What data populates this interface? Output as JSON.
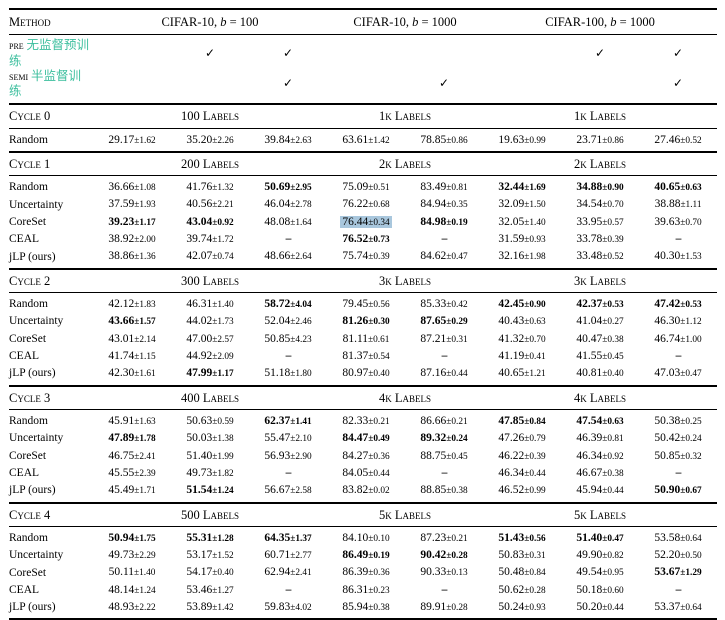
{
  "header": {
    "method_label": "Method",
    "groups": [
      "CIFAR-10, b = 100",
      "CIFAR-10, b = 1000",
      "CIFAR-100, b = 1000"
    ],
    "group_spans": [
      3,
      2,
      3
    ]
  },
  "pretrain": {
    "pre_label": "pre",
    "pre_text": "无监督预训练",
    "semi_label": "semi",
    "semi_text": "半监督训练",
    "check_glyph": "✓",
    "pre_checks": [
      0,
      1,
      1,
      0,
      0,
      0,
      1,
      1
    ],
    "semi_checks": [
      0,
      0,
      1,
      0,
      1,
      0,
      0,
      1
    ]
  },
  "colors": {
    "accent_teal": "#3dbf9e",
    "highlight_blue": "#a9c7dd"
  },
  "cycles": [
    {
      "name": "Cycle 0",
      "labels": [
        "100 Labels",
        "1k Labels",
        "1k Labels"
      ],
      "rows": [
        {
          "method": "Random",
          "values": [
            "29.17±1.62",
            "35.20±2.26",
            "39.84±2.63",
            "63.61±1.42",
            "78.85±0.86",
            "19.63±0.99",
            "23.71±0.86",
            "27.46±0.52"
          ],
          "bold": [],
          "highlight": []
        }
      ]
    },
    {
      "name": "Cycle 1",
      "labels": [
        "200 Labels",
        "2k Labels",
        "2k Labels"
      ],
      "rows": [
        {
          "method": "Random",
          "values": [
            "36.66±1.08",
            "41.76±1.32",
            "50.69±2.95",
            "75.09±0.51",
            "83.49±0.81",
            "32.44±1.69",
            "34.88±0.90",
            "40.65±0.63"
          ],
          "bold": [
            2,
            5,
            6,
            7
          ],
          "highlight": []
        },
        {
          "method": "Uncertainty",
          "values": [
            "37.59±1.93",
            "40.56±2.21",
            "46.04±2.78",
            "76.22±0.68",
            "84.94±0.35",
            "32.09±1.50",
            "34.54±0.70",
            "38.88±1.11"
          ],
          "bold": [],
          "highlight": []
        },
        {
          "method": "CoreSet",
          "values": [
            "39.23±1.17",
            "43.04±0.92",
            "48.08±1.64",
            "76.44±0.34",
            "84.98±0.19",
            "32.05±1.40",
            "33.95±0.57",
            "39.63±0.70"
          ],
          "bold": [
            0,
            1,
            4
          ],
          "highlight": [
            3
          ]
        },
        {
          "method": "CEAL",
          "values": [
            "38.92±2.00",
            "39.74±1.72",
            "–",
            "76.52±0.73",
            "–",
            "31.59±0.93",
            "33.78±0.39",
            "–"
          ],
          "bold": [
            3
          ],
          "highlight": []
        },
        {
          "method": "jLP (ours)",
          "values": [
            "38.86±1.36",
            "42.07±0.74",
            "48.66±2.64",
            "75.74±0.39",
            "84.62±0.47",
            "32.16±1.98",
            "33.48±0.52",
            "40.30±1.53"
          ],
          "bold": [],
          "highlight": []
        }
      ]
    },
    {
      "name": "Cycle 2",
      "labels": [
        "300 Labels",
        "3k Labels",
        "3k Labels"
      ],
      "rows": [
        {
          "method": "Random",
          "values": [
            "42.12±1.83",
            "46.31±1.40",
            "58.72±4.04",
            "79.45±0.56",
            "85.33±0.42",
            "42.45±0.90",
            "42.37±0.53",
            "47.42±0.53"
          ],
          "bold": [
            2,
            5,
            6,
            7
          ],
          "highlight": []
        },
        {
          "method": "Uncertainty",
          "values": [
            "43.66±1.57",
            "44.02±1.73",
            "52.04±2.46",
            "81.26±0.30",
            "87.65±0.29",
            "40.43±0.63",
            "41.04±0.27",
            "46.30±1.12"
          ],
          "bold": [
            0,
            3,
            4
          ],
          "highlight": []
        },
        {
          "method": "CoreSet",
          "values": [
            "43.01±2.14",
            "47.00±2.57",
            "50.85±4.23",
            "81.11±0.61",
            "87.21±0.31",
            "41.32±0.70",
            "40.47±0.38",
            "46.74±1.00"
          ],
          "bold": [],
          "highlight": []
        },
        {
          "method": "CEAL",
          "values": [
            "41.74±1.15",
            "44.92±2.09",
            "–",
            "81.37±0.54",
            "–",
            "41.19±0.41",
            "41.55±0.45",
            "–"
          ],
          "bold": [],
          "highlight": []
        },
        {
          "method": "jLP (ours)",
          "values": [
            "42.30±1.61",
            "47.99±1.17",
            "51.18±1.80",
            "80.97±0.40",
            "87.16±0.44",
            "40.65±1.21",
            "40.81±0.40",
            "47.03±0.47"
          ],
          "bold": [
            1
          ],
          "highlight": []
        }
      ]
    },
    {
      "name": "Cycle 3",
      "labels": [
        "400 Labels",
        "4k Labels",
        "4k Labels"
      ],
      "rows": [
        {
          "method": "Random",
          "values": [
            "45.91±1.63",
            "50.63±0.59",
            "62.37±1.41",
            "82.33±0.21",
            "86.66±0.21",
            "47.85±0.84",
            "47.54±0.63",
            "50.38±0.25"
          ],
          "bold": [
            2,
            5,
            6
          ],
          "highlight": []
        },
        {
          "method": "Uncertainty",
          "values": [
            "47.89±1.78",
            "50.03±1.38",
            "55.47±2.10",
            "84.47±0.49",
            "89.32±0.24",
            "47.26±0.79",
            "46.39±0.81",
            "50.42±0.24"
          ],
          "bold": [
            0,
            3,
            4
          ],
          "highlight": []
        },
        {
          "method": "CoreSet",
          "values": [
            "46.75±2.41",
            "51.40±1.99",
            "56.93±2.90",
            "84.27±0.36",
            "88.75±0.45",
            "46.22±0.39",
            "46.34±0.92",
            "50.85±0.32"
          ],
          "bold": [],
          "highlight": []
        },
        {
          "method": "CEAL",
          "values": [
            "45.55±2.39",
            "49.73±1.82",
            "–",
            "84.05±0.44",
            "–",
            "46.34±0.44",
            "46.67±0.38",
            "–"
          ],
          "bold": [],
          "highlight": []
        },
        {
          "method": "jLP (ours)",
          "values": [
            "45.49±1.71",
            "51.54±1.24",
            "56.67±2.58",
            "83.82±0.02",
            "88.85±0.38",
            "46.52±0.99",
            "45.94±0.44",
            "50.90±0.67"
          ],
          "bold": [
            1,
            7
          ],
          "highlight": []
        }
      ]
    },
    {
      "name": "Cycle 4",
      "labels": [
        "500 Labels",
        "5k Labels",
        "5k Labels"
      ],
      "rows": [
        {
          "method": "Random",
          "values": [
            "50.94±1.75",
            "55.31±1.28",
            "64.35±1.37",
            "84.10±0.10",
            "87.23±0.21",
            "51.43±0.56",
            "51.40±0.47",
            "53.58±0.64"
          ],
          "bold": [
            0,
            1,
            2,
            5,
            6
          ],
          "highlight": []
        },
        {
          "method": "Uncertainty",
          "values": [
            "49.73±2.29",
            "53.17±1.52",
            "60.71±2.77",
            "86.49±0.19",
            "90.42±0.28",
            "50.83±0.31",
            "49.90±0.82",
            "52.20±0.50"
          ],
          "bold": [
            3,
            4
          ],
          "highlight": []
        },
        {
          "method": "CoreSet",
          "values": [
            "50.11±1.40",
            "54.17±0.40",
            "62.94±2.41",
            "86.39±0.36",
            "90.33±0.13",
            "50.48±0.84",
            "49.54±0.95",
            "53.67±1.29"
          ],
          "bold": [
            7
          ],
          "highlight": []
        },
        {
          "method": "CEAL",
          "values": [
            "48.14±1.24",
            "53.46±1.27",
            "–",
            "86.31±0.23",
            "–",
            "50.62±0.28",
            "50.18±0.60",
            "–"
          ],
          "bold": [],
          "highlight": []
        },
        {
          "method": "jLP (ours)",
          "values": [
            "48.93±2.22",
            "53.89±1.42",
            "59.83±4.02",
            "85.94±0.38",
            "89.91±0.28",
            "50.24±0.93",
            "50.20±0.44",
            "53.37±0.64"
          ],
          "bold": [],
          "highlight": []
        }
      ]
    }
  ]
}
